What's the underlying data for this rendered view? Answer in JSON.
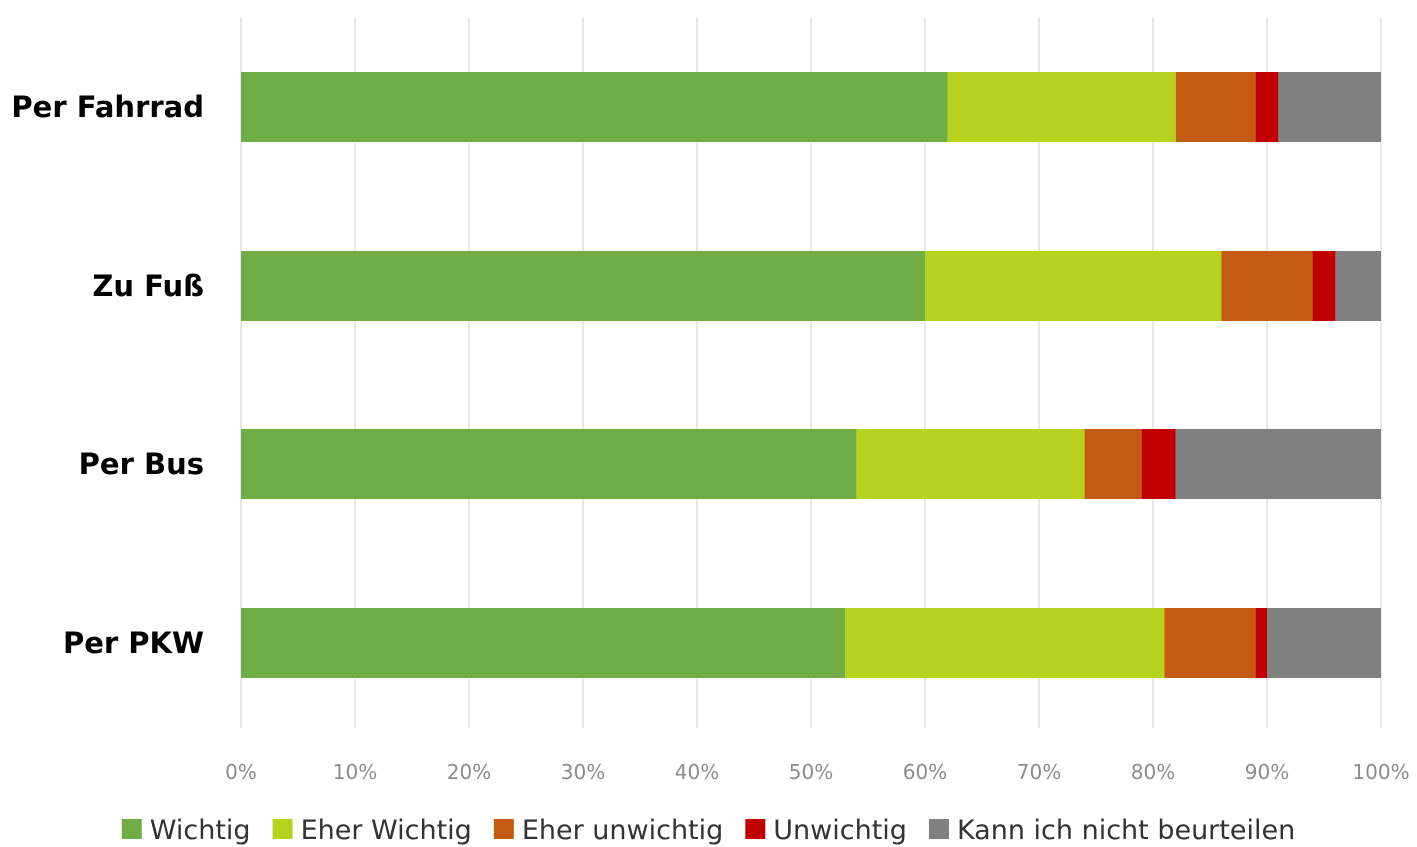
{
  "chart_data": {
    "type": "bar",
    "orientation": "horizontal",
    "stacked": true,
    "categories": [
      "Per Fahrrad",
      "Zu Fuß",
      "Per Bus",
      "Per PKW"
    ],
    "series": [
      {
        "name": "Wichtig",
        "color": "#70ad47",
        "values": [
          62,
          60,
          54,
          53
        ]
      },
      {
        "name": "Eher Wichtig",
        "color": "#b5d21f",
        "values": [
          20,
          26,
          20,
          28
        ]
      },
      {
        "name": "Eher unwichtig",
        "color": "#c55a11",
        "values": [
          7,
          8,
          5,
          8
        ]
      },
      {
        "name": "Unwichtig",
        "color": "#c00000",
        "values": [
          2,
          2,
          3,
          1
        ]
      },
      {
        "name": "Kann ich nicht beurteilen",
        "color": "#808080",
        "values": [
          9,
          4,
          18,
          10
        ]
      }
    ],
    "x_ticks": [
      "0%",
      "10%",
      "20%",
      "30%",
      "40%",
      "50%",
      "60%",
      "70%",
      "80%",
      "90%",
      "100%"
    ],
    "xlim": [
      0,
      100
    ],
    "grid": "vertical",
    "legend_position": "bottom"
  }
}
